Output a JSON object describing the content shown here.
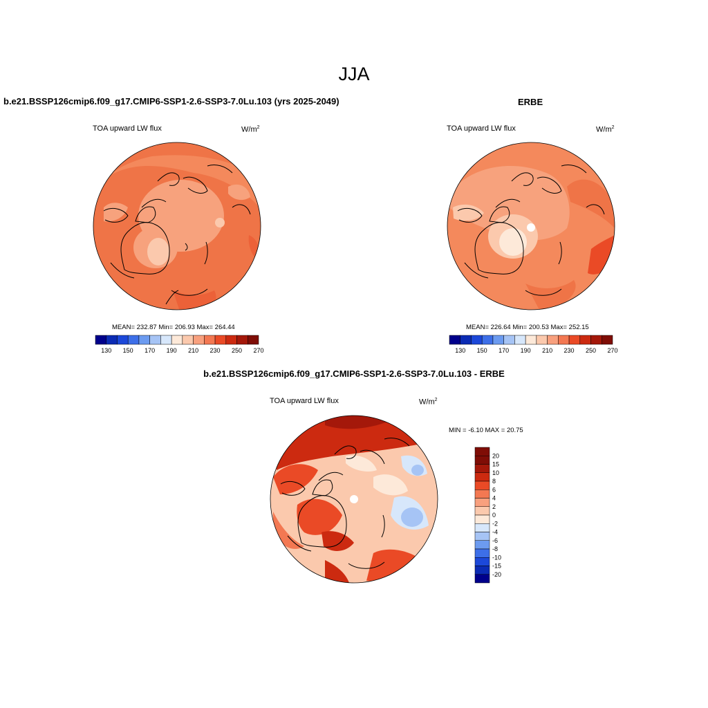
{
  "figure": {
    "season_title": "JJA"
  },
  "panels": [
    {
      "id": "model",
      "title": "b.e21.BSSP126cmip6.f09_g17.CMIP6-SSP1-2.6-SSP3-7.0Lu.103 (yrs 2025-2049)",
      "variable": "TOA upward LW flux",
      "units": "W/m",
      "units_exp": "2",
      "stats": "MEAN= 232.87  Min= 206.93  Max= 264.44",
      "colorbar_ticks": [
        "130",
        "150",
        "170",
        "190",
        "210",
        "230",
        "250",
        "270"
      ]
    },
    {
      "id": "obs",
      "title": "ERBE",
      "variable": "TOA upward LW flux",
      "units": "W/m",
      "units_exp": "2",
      "stats": "MEAN= 226.64  Min= 200.53  Max= 252.15",
      "colorbar_ticks": [
        "130",
        "150",
        "170",
        "190",
        "210",
        "230",
        "250",
        "270"
      ]
    },
    {
      "id": "diff",
      "title": "b.e21.BSSP126cmip6.f09_g17.CMIP6-SSP1-2.6-SSP3-7.0Lu.103 - ERBE",
      "variable": "TOA upward LW flux",
      "units": "W/m",
      "units_exp": "2",
      "stats": "MIN =  -6.10 MAX =  20.75",
      "colorbar_ticks": [
        "20",
        "15",
        "10",
        "8",
        "6",
        "4",
        "2",
        "0",
        "-2",
        "-4",
        "-6",
        "-8",
        "-10",
        "-15",
        "-20"
      ]
    }
  ],
  "colors": {
    "abs_scale": [
      "#00008b",
      "#0b2bb4",
      "#1c48d9",
      "#3d6fe8",
      "#6c9bf0",
      "#a6c4f5",
      "#d7e7fb",
      "#fde9d9",
      "#fbc9ad",
      "#f8a07e",
      "#f37852",
      "#ea4a26",
      "#cc2a10",
      "#a4180a",
      "#7f0d06"
    ],
    "diff_scale": [
      "#7f0d06",
      "#a4180a",
      "#cc2a10",
      "#ea4a26",
      "#f37852",
      "#f8a07e",
      "#fbc9ad",
      "#fde9d9",
      "#d7e7fb",
      "#a6c4f5",
      "#6c9bf0",
      "#3d6fe8",
      "#1c48d9",
      "#0b2bb4",
      "#00008b"
    ]
  }
}
